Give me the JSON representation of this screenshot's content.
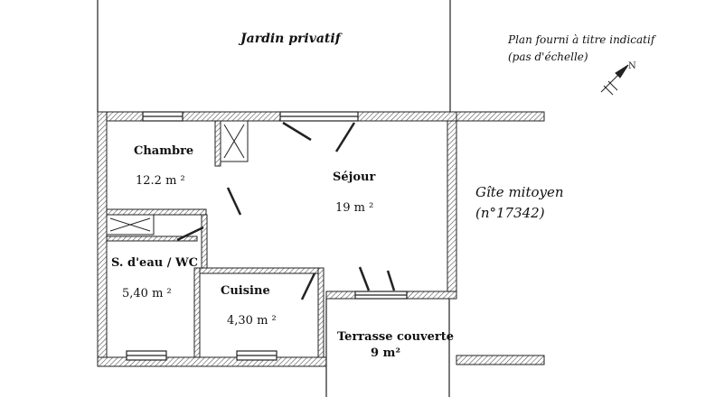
{
  "labels": {
    "jardin": "Jardin privatif",
    "note_line1": "Plan fourni à titre indicatif",
    "note_line2": "(pas d'échelle)",
    "gite_line1": "Gîte mitoyen",
    "gite_line2": "(n°17342)"
  },
  "rooms": {
    "chambre": {
      "name": "Chambre",
      "area": "12.2 m ²"
    },
    "sejour": {
      "name": "Séjour",
      "area": "19 m ²"
    },
    "sdeau": {
      "name": "S. d'eau / WC",
      "area": "5,40 m ²"
    },
    "cuisine": {
      "name": "Cuisine",
      "area": "4,30 m ²"
    },
    "terrasse": {
      "name": "Terrasse couverte",
      "area": "9 m²"
    }
  },
  "compass": {
    "icon": "north-arrow-icon",
    "letter": "N"
  },
  "colors": {
    "wall_hatch": "#555555",
    "line": "#222222"
  }
}
